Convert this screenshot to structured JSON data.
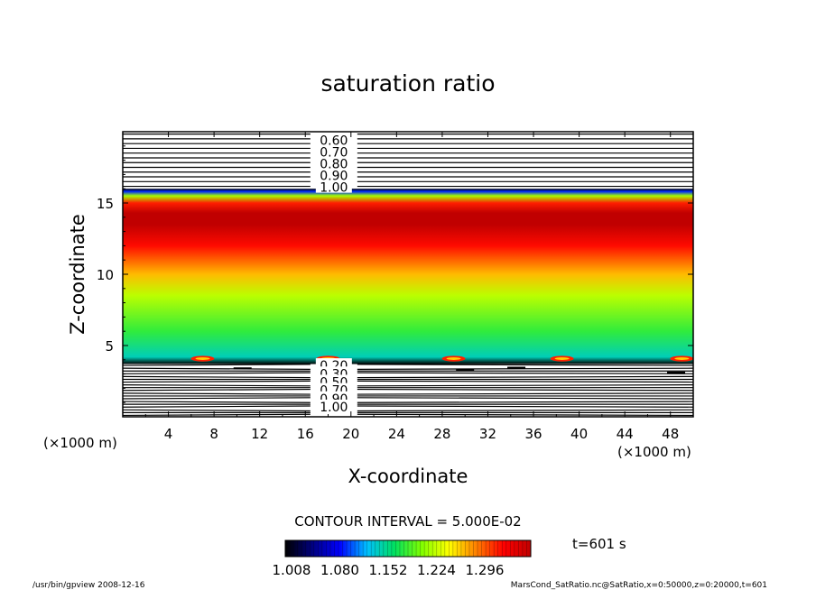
{
  "chart_data": {
    "type": "heatmap",
    "title": "saturation ratio",
    "xlabel": "X-coordinate",
    "ylabel": "Z-coordinate",
    "x_unit": "(×1000 m)",
    "y_unit": "(×1000 m)",
    "xlim": [
      0,
      50
    ],
    "ylim": [
      0,
      20
    ],
    "x_ticks": [
      4,
      8,
      12,
      16,
      20,
      24,
      28,
      32,
      36,
      40,
      44,
      48
    ],
    "y_ticks": [
      5,
      10,
      15
    ],
    "filled_layer": {
      "z_range": [
        3.7,
        16.0
      ],
      "profile": [
        {
          "z": 3.7,
          "value": 1.008
        },
        {
          "z": 4.2,
          "value": 1.12
        },
        {
          "z": 6.0,
          "value": 1.15
        },
        {
          "z": 8.5,
          "value": 1.185
        },
        {
          "z": 10.0,
          "value": 1.22
        },
        {
          "z": 12.0,
          "value": 1.265
        },
        {
          "z": 13.5,
          "value": 1.3
        },
        {
          "z": 14.3,
          "value": 1.3
        },
        {
          "z": 15.0,
          "value": 1.26
        },
        {
          "z": 15.5,
          "value": 1.18
        },
        {
          "z": 15.8,
          "value": 1.08
        },
        {
          "z": 16.0,
          "value": 1.008
        }
      ],
      "surface_cells_x": [
        7,
        18,
        29,
        38.5,
        49
      ]
    },
    "upper_contours": {
      "z_range": [
        16.0,
        20.0
      ],
      "labels": [
        "0.60",
        "0.70",
        "0.80",
        "0.90",
        "1.00"
      ]
    },
    "lower_contours": {
      "z_range": [
        0,
        3.7
      ],
      "labels": [
        "0.20",
        "0.30",
        "0.50",
        "0.70",
        "0.90",
        "1.00"
      ]
    },
    "contour_interval_text": "CONTOUR INTERVAL = 5.000E-02",
    "colorbar": {
      "min": 1.008,
      "max": 1.3,
      "tick_labels": [
        "1.008",
        "1.080",
        "1.152",
        "1.224",
        "1.296"
      ],
      "colormap": [
        "#000000",
        "#000080",
        "#0000ff",
        "#00c0ff",
        "#00e060",
        "#80ff00",
        "#ffff00",
        "#ff8000",
        "#ff0000",
        "#c00000"
      ]
    },
    "time_label": "t=601 s",
    "footer_left": "/usr/bin/gpview   2008-12-16",
    "footer_right": "MarsCond_SatRatio.nc@SatRatio,x=0:50000,z=0:20000,t=601"
  }
}
